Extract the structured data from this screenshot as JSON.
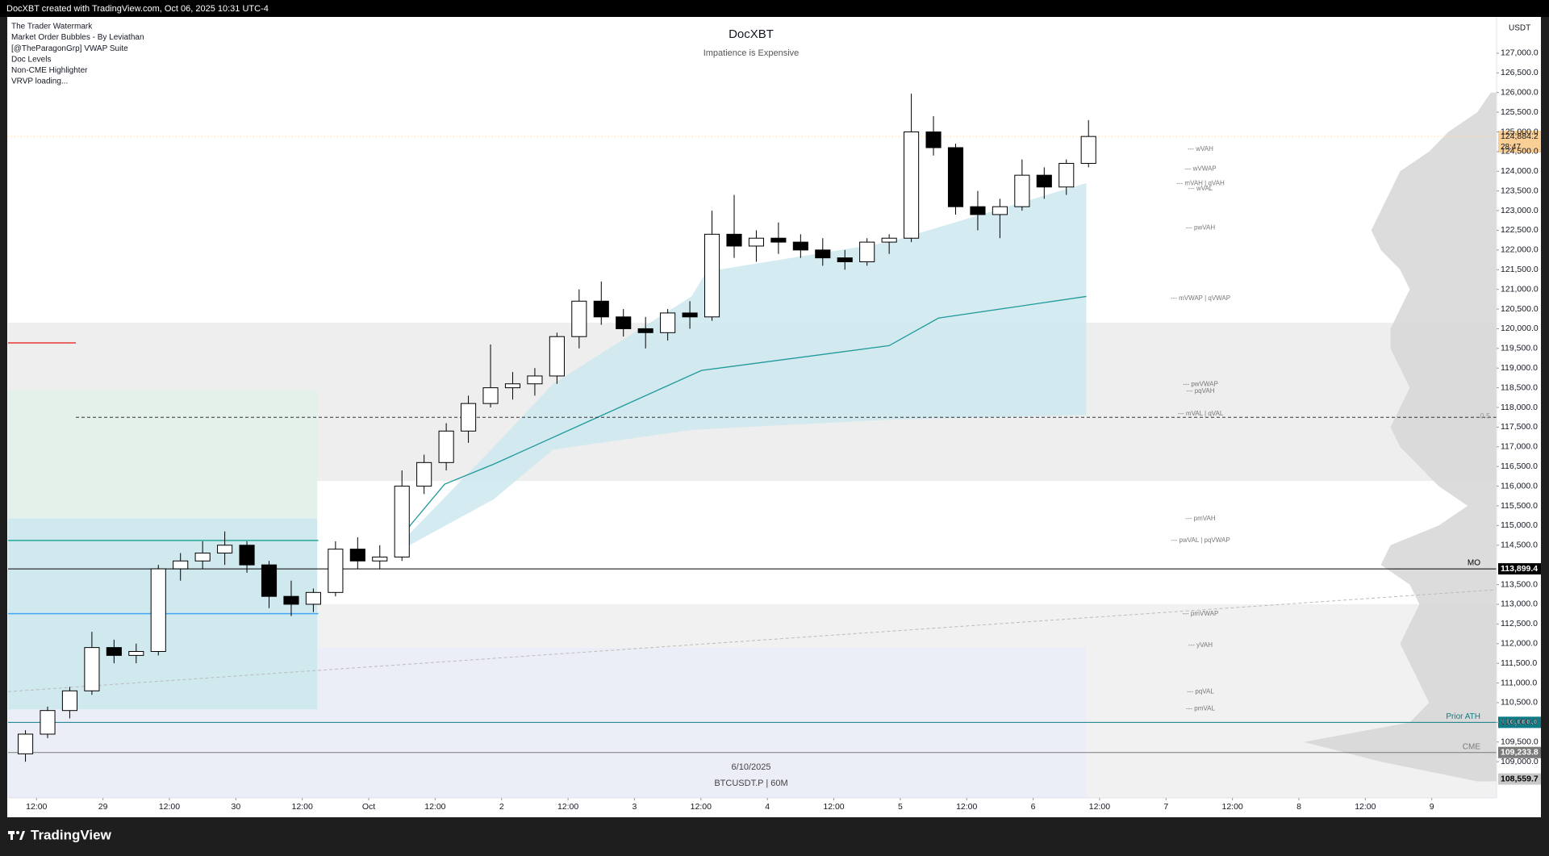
{
  "top_bar": "DocXBT created with TradingView.com, Oct 06, 2025 10:31 UTC-4",
  "indicators": [
    "The Trader Watermark",
    "Market Order Bubbles - By Leviathan",
    "[@TheParagonGrp]  VWAP Suite",
    "Doc Levels",
    "Non-CME Highlighter",
    "VRVP loading..."
  ],
  "footer": "TradingView",
  "chart_data": {
    "type": "candlestick",
    "title": "DocXBT",
    "subtitle": "Impatience is Expensive",
    "watermark": [
      "6/10/2025",
      "BTCUSDT.P | 60M"
    ],
    "currency": "USDT",
    "xlim": [
      6.86,
      275.7
    ],
    "ylim": [
      108080,
      127900
    ],
    "xticks": [
      {
        "value": 12,
        "label": "12:00"
      },
      {
        "value": 24,
        "label": "29"
      },
      {
        "value": 36,
        "label": "12:00"
      },
      {
        "value": 48,
        "label": "30"
      },
      {
        "value": 60,
        "label": "12:00"
      },
      {
        "value": 72,
        "label": "Oct"
      },
      {
        "value": 84,
        "label": "12:00"
      },
      {
        "value": 96,
        "label": "2"
      },
      {
        "value": 108,
        "label": "12:00"
      },
      {
        "value": 120,
        "label": "3"
      },
      {
        "value": 132,
        "label": "12:00"
      },
      {
        "value": 144,
        "label": "4"
      },
      {
        "value": 156,
        "label": "12:00"
      },
      {
        "value": 168,
        "label": "5"
      },
      {
        "value": 180,
        "label": "12:00"
      },
      {
        "value": 192,
        "label": "6"
      },
      {
        "value": 204,
        "label": "12:00"
      },
      {
        "value": 216,
        "label": "7"
      },
      {
        "value": 228,
        "label": "12:00"
      },
      {
        "value": 240,
        "label": "8"
      },
      {
        "value": 252,
        "label": "12:00"
      },
      {
        "value": 264,
        "label": "9"
      }
    ],
    "yticks": [
      {
        "value": 109000,
        "label": "109,000.0"
      },
      {
        "value": 109500,
        "label": "109,500.0"
      },
      {
        "value": 110000,
        "label": "110,000.0"
      },
      {
        "value": 110500,
        "label": "110,500.0"
      },
      {
        "value": 111000,
        "label": "111,000.0"
      },
      {
        "value": 111500,
        "label": "111,500.0"
      },
      {
        "value": 112000,
        "label": "112,000.0"
      },
      {
        "value": 112500,
        "label": "112,500.0"
      },
      {
        "value": 113000,
        "label": "113,000.0"
      },
      {
        "value": 113500,
        "label": "113,500.0"
      },
      {
        "value": 114500,
        "label": "114,500.0"
      },
      {
        "value": 115000,
        "label": "115,000.0"
      },
      {
        "value": 115500,
        "label": "115,500.0"
      },
      {
        "value": 116000,
        "label": "116,000.0"
      },
      {
        "value": 116500,
        "label": "116,500.0"
      },
      {
        "value": 117000,
        "label": "117,000.0"
      },
      {
        "value": 117500,
        "label": "117,500.0"
      },
      {
        "value": 118000,
        "label": "118,000.0"
      },
      {
        "value": 118500,
        "label": "118,500.0"
      },
      {
        "value": 119000,
        "label": "119,000.0"
      },
      {
        "value": 119500,
        "label": "119,500.0"
      },
      {
        "value": 120000,
        "label": "120,000.0"
      },
      {
        "value": 120500,
        "label": "120,500.0"
      },
      {
        "value": 121000,
        "label": "121,000.0"
      },
      {
        "value": 121500,
        "label": "121,500.0"
      },
      {
        "value": 122000,
        "label": "122,000.0"
      },
      {
        "value": 122500,
        "label": "122,500.0"
      },
      {
        "value": 123000,
        "label": "123,000.0"
      },
      {
        "value": 123500,
        "label": "123,500.0"
      },
      {
        "value": 124000,
        "label": "124,000.0"
      },
      {
        "value": 124500,
        "label": "124,500.0"
      },
      {
        "value": 125000,
        "label": "125,000.0"
      },
      {
        "value": 125500,
        "label": "125,500.0"
      },
      {
        "value": 126000,
        "label": "126,000.0"
      },
      {
        "value": 126500,
        "label": "126,500.0"
      },
      {
        "value": 127000,
        "label": "127,000.0"
      }
    ],
    "up_color": "#ffffff",
    "down_color": "#000000",
    "candles": {
      "x": [
        10,
        14,
        18,
        22,
        26,
        30,
        34,
        38,
        42,
        46,
        50,
        54,
        58,
        62,
        66,
        70,
        74,
        78,
        82,
        86,
        90,
        94,
        98,
        102,
        106,
        110,
        114,
        118,
        122,
        126,
        130,
        134,
        138,
        142,
        146,
        150,
        154,
        158,
        162,
        166,
        170,
        174,
        178,
        182,
        186,
        190,
        194,
        198,
        202
      ],
      "open": [
        109200,
        109700,
        110300,
        110800,
        111900,
        111700,
        111800,
        113900,
        114100,
        114300,
        114500,
        114000,
        113200,
        113000,
        113300,
        114400,
        114100,
        114200,
        116000,
        116600,
        117400,
        118100,
        118500,
        118600,
        118800,
        119800,
        120700,
        120300,
        120000,
        119900,
        120400,
        120300,
        122400,
        122100,
        122300,
        122200,
        122000,
        121800,
        121700,
        122200,
        122300,
        125000,
        124600,
        123100,
        122900,
        123100,
        123900,
        123600,
        124200
      ],
      "high": [
        109800,
        110400,
        110900,
        112300,
        112100,
        112000,
        114000,
        114300,
        114600,
        114850,
        114600,
        114100,
        113600,
        113400,
        114600,
        114700,
        114500,
        116400,
        116800,
        117600,
        118300,
        119600,
        118900,
        119000,
        119900,
        121000,
        121200,
        120500,
        120300,
        120500,
        120700,
        123000,
        123400,
        122500,
        122700,
        122400,
        122300,
        122000,
        122300,
        122400,
        125970,
        125400,
        124700,
        123500,
        123300,
        124300,
        124100,
        124300,
        125300
      ],
      "low": [
        109000,
        109600,
        110100,
        110700,
        111500,
        111500,
        111700,
        113600,
        113900,
        114000,
        113800,
        112900,
        112700,
        112800,
        113200,
        113900,
        113900,
        114100,
        115800,
        116400,
        117100,
        118000,
        118200,
        118300,
        118600,
        119500,
        120100,
        119800,
        119500,
        119700,
        120000,
        120200,
        121800,
        121700,
        121900,
        121800,
        121600,
        121500,
        121600,
        121900,
        122200,
        124400,
        122900,
        122500,
        122300,
        123000,
        123300,
        123400,
        124100
      ],
      "close": [
        109700,
        110300,
        110800,
        111900,
        111700,
        111800,
        113900,
        114100,
        114300,
        114500,
        114000,
        113200,
        113000,
        113300,
        114400,
        114100,
        114200,
        116000,
        116600,
        117400,
        118100,
        118500,
        118600,
        118800,
        119800,
        120700,
        120300,
        120000,
        119900,
        120400,
        120300,
        122400,
        122100,
        122300,
        122200,
        122000,
        121800,
        121700,
        122200,
        122300,
        125000,
        124600,
        123100,
        122900,
        123100,
        123900,
        123600,
        124200,
        124884.2
      ]
    },
    "band": {
      "x": [
        76.8,
        94.6,
        105.3,
        130.3,
        133.0,
        166,
        201.6
      ],
      "upper": [
        114420,
        117000,
        118600,
        120820,
        121450,
        122200,
        123700
      ],
      "lower": [
        114300,
        115670,
        116930,
        117430,
        117450,
        117690,
        117810
      ],
      "color": "#cce8ef"
    },
    "vwap": {
      "x": [
        76.8,
        85.7,
        94.6,
        112.4,
        132.1,
        166,
        174.9,
        201.6
      ],
      "values": [
        114550,
        116050,
        116560,
        117690,
        118940,
        119570,
        120270,
        120820
      ],
      "color": "#1f9a9a"
    },
    "zones": [
      {
        "x": [
          6.86,
          275.7
        ],
        "low": 116130,
        "high": 120150,
        "color": "#eeeeee"
      },
      {
        "x": [
          6.86,
          275.7
        ],
        "low": 108080,
        "high": 113000,
        "color": "#f1f1f1"
      },
      {
        "x": [
          6.86,
          201.6
        ],
        "low": 108080,
        "high": 111900,
        "color": "#eceef7"
      },
      {
        "x": [
          6.86,
          62.7
        ],
        "low": 115180,
        "high": 118440,
        "color": "#e3f1ea"
      },
      {
        "x": [
          6.86,
          62.7
        ],
        "low": 110330,
        "high": 115180,
        "color": "#cfe9ee"
      }
    ],
    "lines": [
      {
        "x": [
          6.86,
          19.1
        ],
        "y": [
          119640,
          119640
        ],
        "color": "#e53935",
        "dash": false
      },
      {
        "x": [
          19.1,
          275.7
        ],
        "y": [
          117750,
          117750
        ],
        "color": "#333333",
        "dash": true,
        "label": "0.5"
      },
      {
        "x": [
          6.86,
          62.9
        ],
        "y": [
          114620,
          114620
        ],
        "color": "#26a69a",
        "dash": false
      },
      {
        "x": [
          6.86,
          62.9
        ],
        "y": [
          112760,
          112760
        ],
        "color": "#42a5f5",
        "dash": false
      },
      {
        "x": [
          6.86,
          275.7
        ],
        "y": [
          110780,
          113370
        ],
        "color": "#bbbbbb",
        "dash": true
      }
    ],
    "levels": [
      {
        "label": "--- wVAH",
        "price": 124565
      },
      {
        "label": "--- wVWAP",
        "price": 124060
      },
      {
        "label": "--- mVAH | qVAH",
        "price": 123690
      },
      {
        "label": "--- wVAL",
        "price": 123560
      },
      {
        "label": "--- pwVAH",
        "price": 122560
      },
      {
        "label": "--- mVWAP | qVWAP",
        "price": 120770
      },
      {
        "label": "--- pwVWAP",
        "price": 118590
      },
      {
        "label": "--- pqVAH",
        "price": 118410
      },
      {
        "label": "--- mVAL | qVAL",
        "price": 117840
      },
      {
        "label": "--- pmVAH",
        "price": 115170
      },
      {
        "label": "--- pwVAL | pqVWAP",
        "price": 114620
      },
      {
        "label": "--- pmVWAP",
        "price": 112760
      },
      {
        "label": "--- yVAH",
        "price": 111960
      },
      {
        "label": "--- pqVAL",
        "price": 110780
      },
      {
        "label": "--- pmVAL",
        "price": 110350
      }
    ],
    "price_lines": [
      {
        "name": "MO",
        "value": 113899.4,
        "label": "113,899.4",
        "color": "#000000",
        "text_color": "#ffffff"
      },
      {
        "name": "Prior ATH",
        "value": 110000.0,
        "label": "110,000.0",
        "color": "#0e7c86",
        "text_color": "#ffffff"
      },
      {
        "name": "CME",
        "value": 109233.8,
        "label": "109,233.8",
        "color": "#7a7a7a",
        "text_color": "#ffffff"
      },
      {
        "value": 108559.7,
        "label": "108,559.7",
        "color": "#c8c8c8",
        "text_color": "#000000"
      }
    ],
    "last": {
      "value": 124884.2,
      "label": "124,884.2",
      "countdown": "28:47",
      "color": "#f9cf95"
    },
    "volume_profile": {
      "prices": [
        108500,
        109000,
        109500,
        110000,
        110500,
        111000,
        111500,
        112000,
        112500,
        113000,
        113500,
        114000,
        114500,
        115000,
        115500,
        116000,
        116500,
        117000,
        117500,
        118000,
        118500,
        119000,
        119500,
        120000,
        120500,
        121000,
        121500,
        122000,
        122500,
        123000,
        123500,
        124000,
        124500,
        125000,
        125500,
        126000
      ],
      "values": [
        10,
        60,
        100,
        45,
        35,
        40,
        45,
        50,
        45,
        40,
        45,
        60,
        55,
        30,
        15,
        30,
        40,
        50,
        55,
        50,
        45,
        50,
        55,
        55,
        50,
        45,
        50,
        60,
        65,
        60,
        55,
        50,
        35,
        25,
        10,
        3
      ],
      "color": "#d6d6d6"
    }
  }
}
